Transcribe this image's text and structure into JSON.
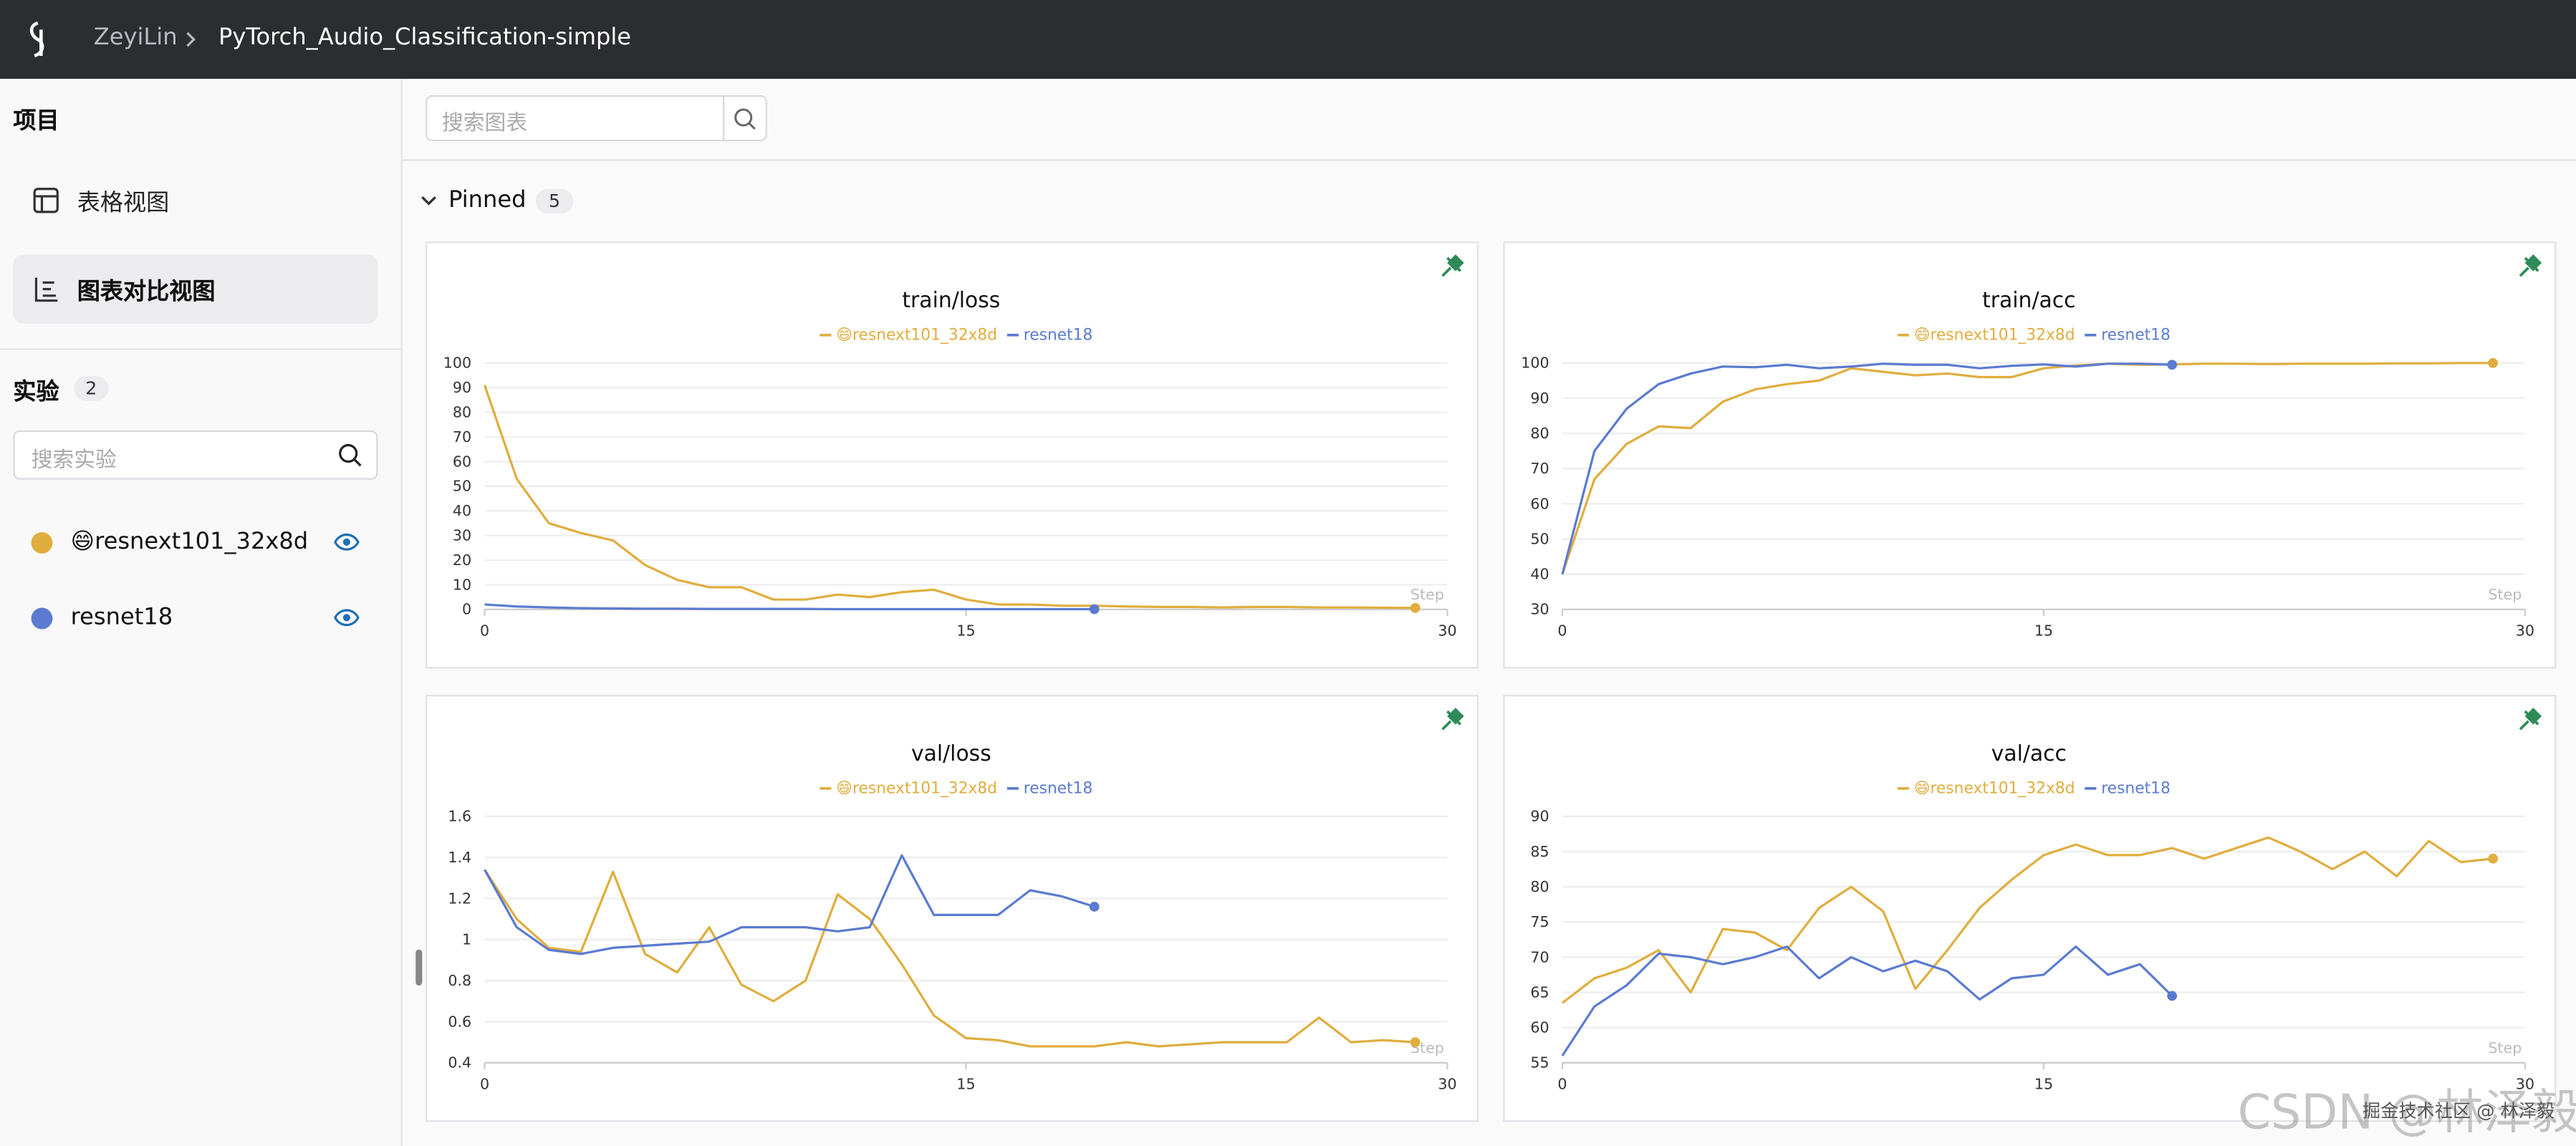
{
  "header": {
    "workspace": "ZeyiLin",
    "project": "PyTorch_Audio_Classification-simple"
  },
  "sidebar": {
    "project_heading": "项目",
    "views": [
      "表格视图",
      "图表对比视图"
    ],
    "experiments_heading": "实验",
    "experiment_count": 2,
    "search_placeholder": "搜索实验",
    "experiments": [
      {
        "name": "😄resnext101_32x8d",
        "color": "#e0ad3e"
      },
      {
        "name": "resnet18",
        "color": "#5b7bd0"
      }
    ]
  },
  "toolbar": {
    "search_placeholder": "搜索图表"
  },
  "section": {
    "title": "Pinned",
    "count": 5
  },
  "chart_data": [
    {
      "type": "line",
      "title": "train/loss",
      "xlabel": "Step",
      "x": [
        0,
        1,
        2,
        3,
        4,
        5,
        6,
        7,
        8,
        9,
        10,
        11,
        12,
        13,
        14,
        15,
        16,
        17,
        18,
        19,
        20,
        21,
        22,
        23,
        24,
        25,
        26,
        27,
        28,
        29
      ],
      "xlim": [
        0,
        30
      ],
      "xticks": [
        0,
        15,
        30
      ],
      "ylim": [
        0,
        100
      ],
      "yticks": [
        0,
        10,
        20,
        30,
        40,
        50,
        60,
        70,
        80,
        90,
        100
      ],
      "grid": true,
      "series": [
        {
          "name": "😄resnext101_32x8d",
          "color": "#e0ad3e",
          "values": [
            91,
            53,
            35,
            31,
            28,
            18,
            12,
            9,
            9,
            4,
            4,
            6,
            5,
            7,
            8,
            4,
            2,
            2,
            1.5,
            1.5,
            1.2,
            1,
            1,
            0.8,
            1,
            1,
            0.8,
            0.8,
            0.7,
            0.6
          ]
        },
        {
          "name": "resnet18",
          "color": "#5b7bd0",
          "values": [
            2,
            1.2,
            0.8,
            0.5,
            0.4,
            0.3,
            0.3,
            0.2,
            0.2,
            0.2,
            0.2,
            0.1,
            0.1,
            0.1,
            0.1,
            0.1,
            0.1,
            0.1,
            0.1,
            0.1,
            null,
            null,
            null,
            null,
            null,
            null,
            null,
            null,
            null,
            null
          ]
        }
      ]
    },
    {
      "type": "line",
      "title": "train/acc",
      "xlabel": "Step",
      "x": [
        0,
        1,
        2,
        3,
        4,
        5,
        6,
        7,
        8,
        9,
        10,
        11,
        12,
        13,
        14,
        15,
        16,
        17,
        18,
        19,
        20,
        21,
        22,
        23,
        24,
        25,
        26,
        27,
        28,
        29
      ],
      "xlim": [
        0,
        30
      ],
      "xticks": [
        0,
        15,
        30
      ],
      "ylim": [
        30,
        100
      ],
      "yticks": [
        30,
        40,
        50,
        60,
        70,
        80,
        90,
        100
      ],
      "grid": true,
      "series": [
        {
          "name": "😄resnext101_32x8d",
          "color": "#e0ad3e",
          "values": [
            40,
            67,
            77,
            82,
            81.5,
            89,
            92.5,
            94,
            95,
            98.5,
            97.5,
            96.5,
            97,
            96,
            96,
            98.5,
            99.3,
            99.8,
            99.5,
            99.6,
            99.8,
            99.8,
            99.7,
            99.8,
            99.8,
            99.8,
            99.9,
            99.9,
            100,
            100
          ]
        },
        {
          "name": "resnet18",
          "color": "#5b7bd0",
          "values": [
            40,
            75,
            87,
            94,
            97,
            99,
            98.8,
            99.5,
            98.5,
            99,
            99.8,
            99.5,
            99.5,
            98.5,
            99.2,
            99.6,
            99,
            99.8,
            99.8,
            99.5,
            null,
            null,
            null,
            null,
            null,
            null,
            null,
            null,
            null,
            null
          ]
        }
      ]
    },
    {
      "type": "line",
      "title": "val/loss",
      "xlabel": "Step",
      "x": [
        0,
        1,
        2,
        3,
        4,
        5,
        6,
        7,
        8,
        9,
        10,
        11,
        12,
        13,
        14,
        15,
        16,
        17,
        18,
        19,
        20,
        21,
        22,
        23,
        24,
        25,
        26,
        27,
        28,
        29
      ],
      "xlim": [
        0,
        30
      ],
      "xticks": [
        0,
        15,
        30
      ],
      "ylim": [
        0.4,
        1.6
      ],
      "yticks": [
        0.4,
        0.6,
        0.8,
        1,
        1.2,
        1.4,
        1.6
      ],
      "grid": true,
      "series": [
        {
          "name": "😄resnext101_32x8d",
          "color": "#e0ad3e",
          "values": [
            1.34,
            1.1,
            0.96,
            0.94,
            1.33,
            0.93,
            0.84,
            1.06,
            0.78,
            0.7,
            0.8,
            1.22,
            1.1,
            0.88,
            0.63,
            0.52,
            0.51,
            0.48,
            0.48,
            0.48,
            0.5,
            0.48,
            0.49,
            0.5,
            0.5,
            0.5,
            0.62,
            0.5,
            0.51,
            0.5
          ]
        },
        {
          "name": "resnet18",
          "color": "#5b7bd0",
          "values": [
            1.34,
            1.06,
            0.95,
            0.93,
            0.96,
            0.97,
            0.98,
            0.99,
            1.06,
            1.06,
            1.06,
            1.04,
            1.06,
            1.41,
            1.12,
            1.12,
            1.12,
            1.24,
            1.21,
            1.16,
            null,
            null,
            null,
            null,
            null,
            null,
            null,
            null,
            null,
            null
          ]
        }
      ]
    },
    {
      "type": "line",
      "title": "val/acc",
      "xlabel": "Step",
      "x": [
        0,
        1,
        2,
        3,
        4,
        5,
        6,
        7,
        8,
        9,
        10,
        11,
        12,
        13,
        14,
        15,
        16,
        17,
        18,
        19,
        20,
        21,
        22,
        23,
        24,
        25,
        26,
        27,
        28,
        29
      ],
      "xlim": [
        0,
        30
      ],
      "xticks": [
        0,
        15,
        30
      ],
      "ylim": [
        55,
        90
      ],
      "yticks": [
        55,
        60,
        65,
        70,
        75,
        80,
        85,
        90
      ],
      "grid": true,
      "series": [
        {
          "name": "😄resnext101_32x8d",
          "color": "#e0ad3e",
          "values": [
            63.5,
            67,
            68.5,
            71,
            65,
            74,
            73.5,
            71,
            77,
            80,
            76.5,
            65.5,
            71,
            77,
            81,
            84.5,
            86,
            84.5,
            84.5,
            85.5,
            84,
            85.5,
            87,
            85,
            82.5,
            85,
            81.5,
            86.5,
            83.5,
            84
          ]
        },
        {
          "name": "resnet18",
          "color": "#5b7bd0",
          "values": [
            56,
            63,
            66,
            70.5,
            70,
            69,
            70,
            71.5,
            67,
            70,
            68,
            69.5,
            68,
            64,
            67,
            67.5,
            71.5,
            67.5,
            69,
            64.5,
            null,
            null,
            null,
            null,
            null,
            null,
            null,
            null,
            null,
            null
          ]
        }
      ]
    }
  ],
  "watermark": {
    "primary": "CSDN @林泽毅",
    "secondary": "掘金技术社区 @ 林泽毅"
  }
}
